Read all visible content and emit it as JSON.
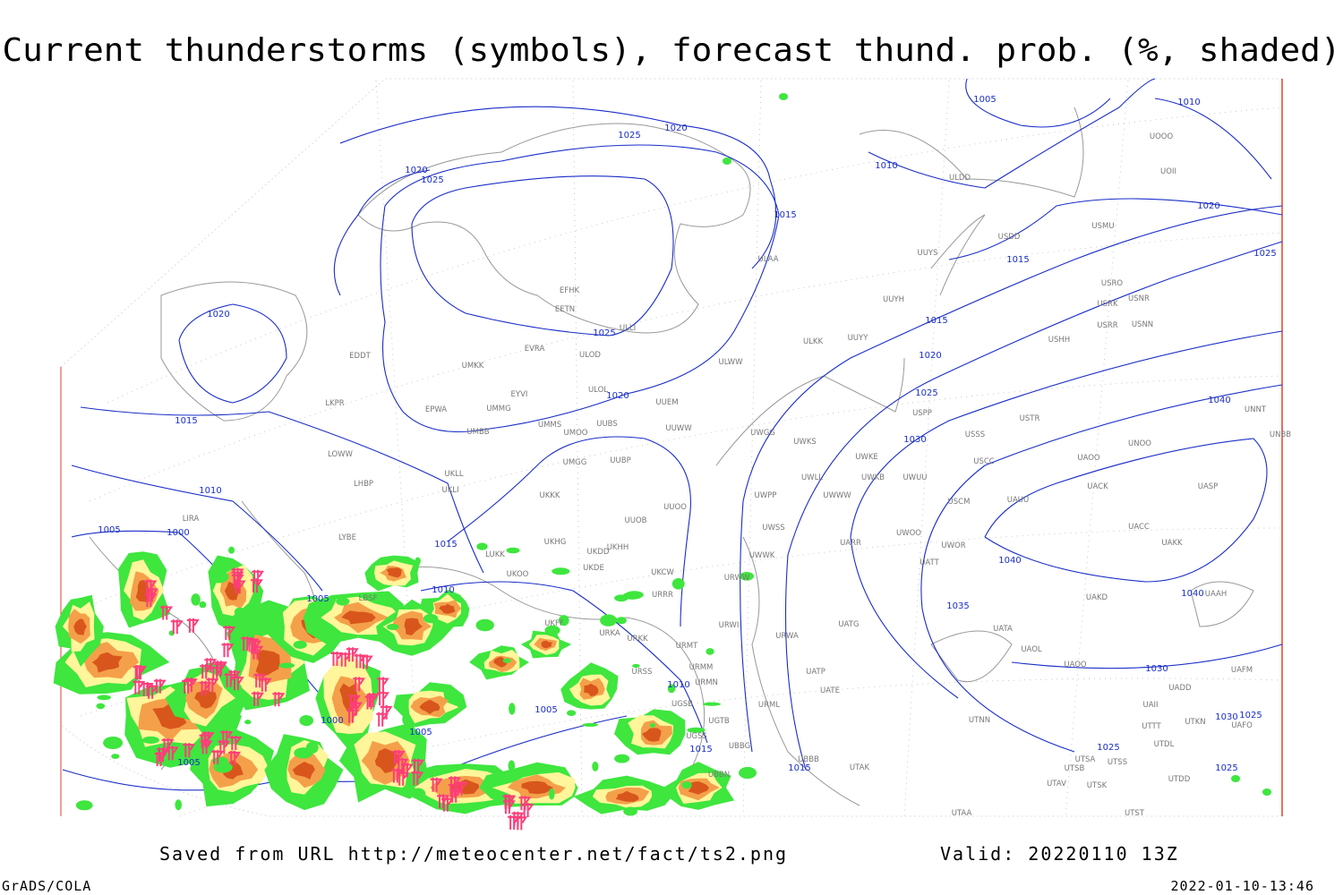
{
  "title": "Current thunderstorms (symbols), forecast thund. prob. (%, shaded)",
  "footer": {
    "source": "Saved from URL http://meteocenter.net/fact/ts2.png",
    "valid": "Valid: 20220110 13Z",
    "credit": "GrADS/COLA",
    "timestamp": "2022-01-10-13:46"
  },
  "isobar_labels": [
    "1005",
    "1010",
    "1025",
    "1020",
    "1010",
    "1020",
    "1025",
    "1015",
    "1020",
    "1015",
    "1025",
    "1025",
    "1020",
    "1015",
    "1020",
    "1020",
    "1015",
    "1025",
    "1040",
    "1030",
    "1010",
    "1005",
    "1000",
    "1015",
    "1040",
    "1010",
    "1005",
    "1040",
    "1035",
    "1030",
    "1010",
    "1005",
    "1000",
    "1005",
    "1030",
    "1025",
    "1015",
    "1025",
    "1005",
    "1015",
    "1025"
  ],
  "stations": [
    "ULDD",
    "UOOO",
    "UOII",
    "USDD",
    "USMU",
    "UUYS",
    "ULAA",
    "USRO",
    "USRK",
    "USNR",
    "UUYH",
    "EFHK",
    "EETN",
    "ULLI",
    "USRR",
    "USNN",
    "ULKK",
    "UUYY",
    "USHH",
    "EVRA",
    "ULOD",
    "EDDT",
    "ULWW",
    "UMKK",
    "ULOL",
    "EYVI",
    "UUEM",
    "LKPR",
    "EPWA",
    "UMMG",
    "USPP",
    "USTR",
    "UNNT",
    "UMMS",
    "UUBS",
    "UMOO",
    "UUWW",
    "UWGG",
    "UWKS",
    "USSS",
    "UNOO",
    "UNBB",
    "UMBB",
    "LOWW",
    "UKLL",
    "UMGG",
    "UUBP",
    "UWKE",
    "USCC",
    "UAOO",
    "UKLI",
    "LHBP",
    "UWKB",
    "UWUU",
    "UWLL",
    "UACK",
    "UASP",
    "UKKK",
    "UWPP",
    "UWWW",
    "USCM",
    "UAUU",
    "UUOO",
    "LIRA",
    "UUOB",
    "UWSS",
    "UACC",
    "UWOO",
    "LYBE",
    "UKHG",
    "UKHH",
    "UKDD",
    "UARR",
    "UWOR",
    "UAKK",
    "LUKK",
    "UATT",
    "UKOO",
    "UKDE",
    "UKCW",
    "URWW",
    "UWWK",
    "URRR",
    "UAKD",
    "UAAH",
    "LBSF",
    "UKFF",
    "URWI",
    "UATG",
    "UATA",
    "URKA",
    "URKK",
    "URWA",
    "URMT",
    "UAOL",
    "URSS",
    "URMM",
    "UATP",
    "UAOO",
    "URMN",
    "UATE",
    "UADD",
    "UAFM",
    "UGSB",
    "URML",
    "UAII",
    "UGTB",
    "UTKN",
    "UAFO",
    "UTNN",
    "UTTT",
    "UGSS",
    "UBBG",
    "UTDL",
    "UTSA",
    "UTSS",
    "UBBN",
    "UBBB",
    "UTAK",
    "UTSB",
    "UTSK",
    "UTAV",
    "UTST",
    "UTAA",
    "UTDD"
  ]
}
